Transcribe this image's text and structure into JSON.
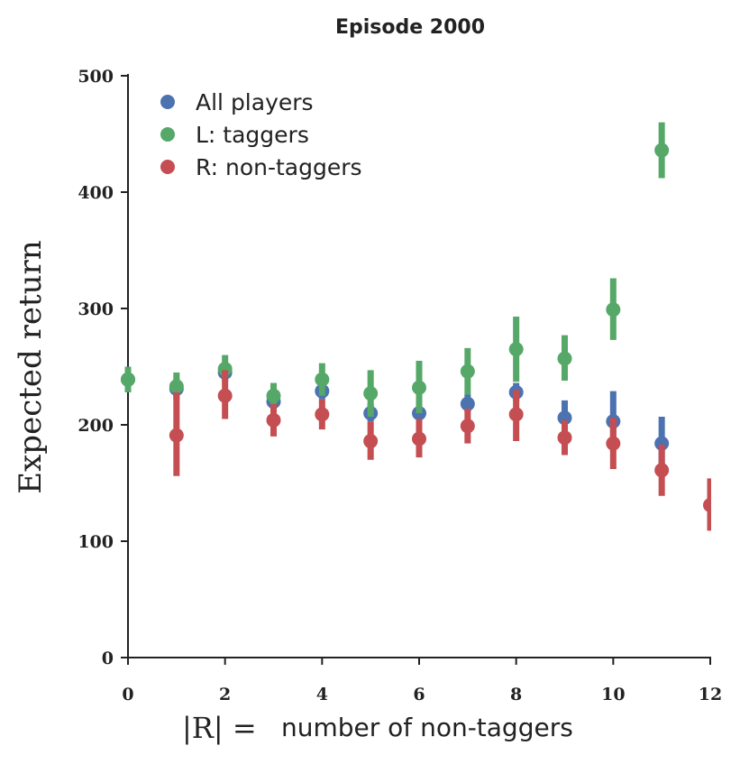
{
  "chart_data": {
    "type": "scatter",
    "title": "Episode 2000",
    "ylabel": "Expected return",
    "xlabel_math": "|R| =",
    "xlabel_text": "number of non-taggers",
    "xlim": [
      0,
      12
    ],
    "ylim": [
      0,
      500
    ],
    "xticks": [
      0,
      2,
      4,
      6,
      8,
      10,
      12
    ],
    "yticks": [
      0,
      100,
      200,
      300,
      400,
      500
    ],
    "grid": false,
    "legend_position": "top-left",
    "series": [
      {
        "name": "All players",
        "color": "#4c72b0",
        "points": [
          {
            "x": 0,
            "y": 239,
            "lo": 228,
            "hi": 250
          },
          {
            "x": 1,
            "y": 231,
            "lo": 223,
            "hi": 240
          },
          {
            "x": 2,
            "y": 245,
            "lo": 239,
            "hi": 251
          },
          {
            "x": 3,
            "y": 220,
            "lo": 214,
            "hi": 227
          },
          {
            "x": 4,
            "y": 229,
            "lo": 222,
            "hi": 236
          },
          {
            "x": 5,
            "y": 210,
            "lo": 203,
            "hi": 218
          },
          {
            "x": 6,
            "y": 210,
            "lo": 203,
            "hi": 218
          },
          {
            "x": 7,
            "y": 218,
            "lo": 211,
            "hi": 226
          },
          {
            "x": 8,
            "y": 228,
            "lo": 220,
            "hi": 236
          },
          {
            "x": 9,
            "y": 206,
            "lo": 192,
            "hi": 221
          },
          {
            "x": 10,
            "y": 203,
            "lo": 180,
            "hi": 229
          },
          {
            "x": 11,
            "y": 184,
            "lo": 164,
            "hi": 207
          }
        ]
      },
      {
        "name": "L: taggers",
        "color": "#55a868",
        "points": [
          {
            "x": 0,
            "y": 239,
            "lo": 228,
            "hi": 250
          },
          {
            "x": 1,
            "y": 233,
            "lo": 221,
            "hi": 245
          },
          {
            "x": 2,
            "y": 248,
            "lo": 237,
            "hi": 260
          },
          {
            "x": 3,
            "y": 225,
            "lo": 215,
            "hi": 236
          },
          {
            "x": 4,
            "y": 239,
            "lo": 225,
            "hi": 253
          },
          {
            "x": 5,
            "y": 227,
            "lo": 207,
            "hi": 247
          },
          {
            "x": 6,
            "y": 232,
            "lo": 210,
            "hi": 255
          },
          {
            "x": 7,
            "y": 246,
            "lo": 226,
            "hi": 266
          },
          {
            "x": 8,
            "y": 265,
            "lo": 237,
            "hi": 293
          },
          {
            "x": 9,
            "y": 257,
            "lo": 238,
            "hi": 277
          },
          {
            "x": 10,
            "y": 299,
            "lo": 273,
            "hi": 326
          },
          {
            "x": 11,
            "y": 436,
            "lo": 412,
            "hi": 460
          }
        ]
      },
      {
        "name": "R: non-taggers",
        "color": "#c44e52",
        "points": [
          {
            "x": 1,
            "y": 191,
            "lo": 156,
            "hi": 228
          },
          {
            "x": 2,
            "y": 225,
            "lo": 205,
            "hi": 247
          },
          {
            "x": 3,
            "y": 204,
            "lo": 190,
            "hi": 218
          },
          {
            "x": 4,
            "y": 209,
            "lo": 196,
            "hi": 222
          },
          {
            "x": 5,
            "y": 186,
            "lo": 170,
            "hi": 203
          },
          {
            "x": 6,
            "y": 188,
            "lo": 172,
            "hi": 205
          },
          {
            "x": 7,
            "y": 199,
            "lo": 184,
            "hi": 214
          },
          {
            "x": 8,
            "y": 209,
            "lo": 186,
            "hi": 230
          },
          {
            "x": 9,
            "y": 189,
            "lo": 174,
            "hi": 204
          },
          {
            "x": 10,
            "y": 184,
            "lo": 162,
            "hi": 206
          },
          {
            "x": 11,
            "y": 161,
            "lo": 139,
            "hi": 183
          },
          {
            "x": 12,
            "y": 131,
            "lo": 109,
            "hi": 154
          }
        ]
      }
    ]
  }
}
